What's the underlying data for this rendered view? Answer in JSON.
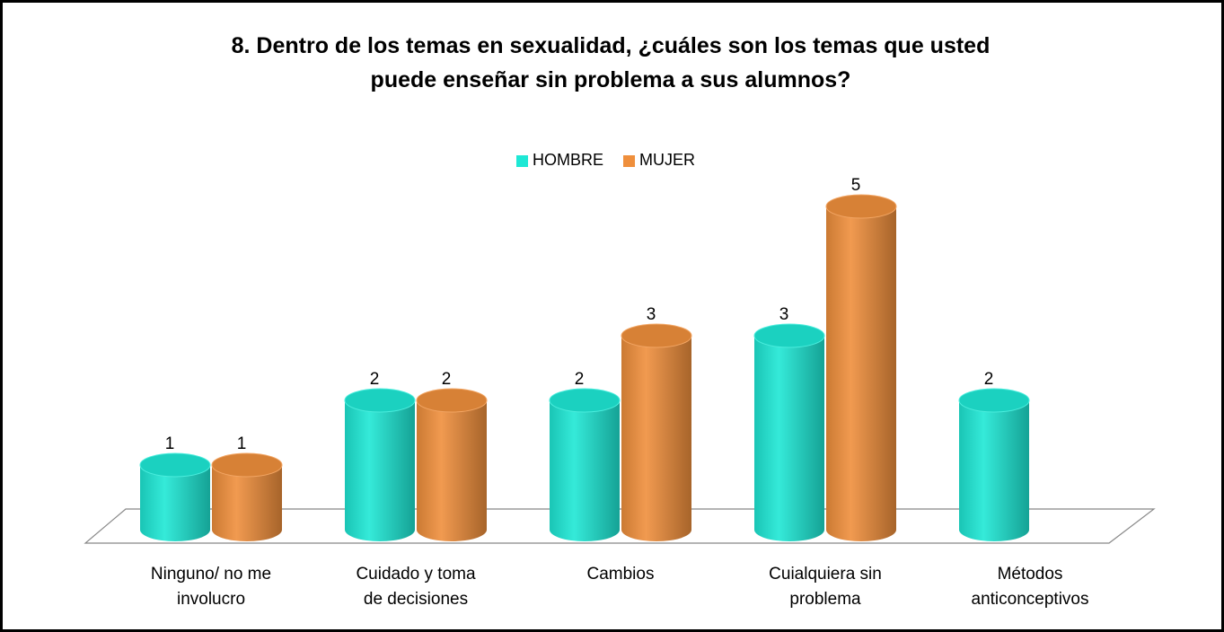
{
  "chart_data": {
    "type": "bar3d",
    "title": "8. Dentro de los temas en sexualidad, ¿cuáles son los temas que usted puede enseñar sin problema a sus alumnos?",
    "categories": [
      "Ninguno/ no me involucro",
      "Cuidado y toma de decisiones",
      "Cambios",
      "Cuialquiera sin problema",
      "Métodos anticonceptivos"
    ],
    "series": [
      {
        "name": "HOMBRE",
        "color": "#1ee8d5",
        "values": [
          1,
          2,
          2,
          3,
          2
        ]
      },
      {
        "name": "MUJER",
        "color": "#ef8f3c",
        "values": [
          1,
          2,
          3,
          5,
          null
        ]
      }
    ],
    "legend": "top"
  }
}
